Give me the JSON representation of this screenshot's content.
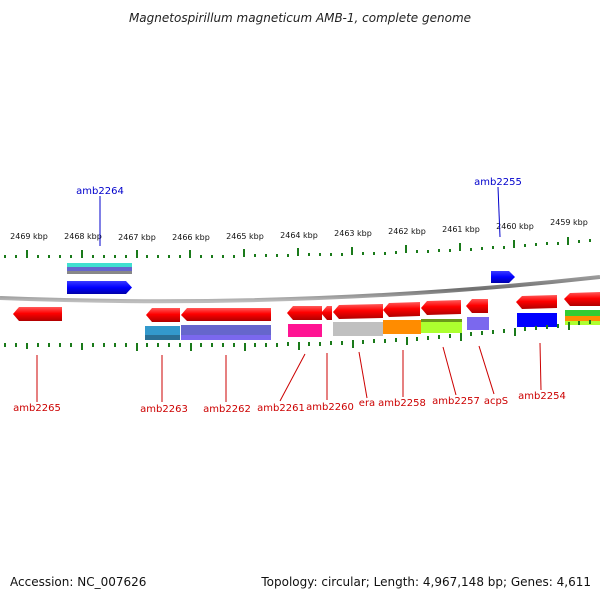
{
  "title": "Magnetospirillum magneticum AMB-1, complete genome",
  "footer": {
    "accession": "Accession: NC_007626",
    "topology": "Topology: circular; Length: 4,967,148 bp; Genes: 4,611"
  },
  "colors": {
    "forward_gene": "#ff0000",
    "label_forward": "#cc0000",
    "label_reverse": "#0000cc",
    "tick": "#1a7a1a",
    "backbone": "#7a7a7a"
  },
  "position_ticks": [
    {
      "label": "2469 kbp"
    },
    {
      "label": "2468 kbp"
    },
    {
      "label": "2467 kbp"
    },
    {
      "label": "2466 kbp"
    },
    {
      "label": "2465 kbp"
    },
    {
      "label": "2464 kbp"
    },
    {
      "label": "2463 kbp"
    },
    {
      "label": "2462 kbp"
    },
    {
      "label": "2461 kbp"
    },
    {
      "label": "2460 kbp"
    },
    {
      "label": "2459 kbp"
    }
  ],
  "gene_labels": {
    "amb2264": "amb2264",
    "amb2255": "amb2255",
    "amb2265": "amb2265",
    "amb2263": "amb2263",
    "amb2262": "amb2262",
    "amb2261": "amb2261",
    "amb2260": "amb2260",
    "era": "era",
    "amb2258": "amb2258",
    "amb2257": "amb2257",
    "acpS": "acpS",
    "amb2254": "amb2254"
  },
  "domain_colors": [
    "#3399cc",
    "#6666cc",
    "#ff1493",
    "#c0c0c0",
    "#ff8c00",
    "#adff2f",
    "#7b68ee",
    "#0000ff",
    "#32cd32",
    "#40e0d0"
  ]
}
